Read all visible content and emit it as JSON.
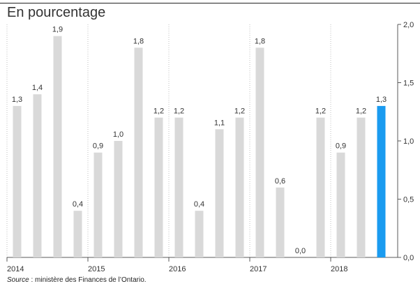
{
  "header": {
    "subtitle": "En pourcentage"
  },
  "footer": {
    "source_label": "Source",
    "source_text": " : ministère des Finances de l’Ontario."
  },
  "colors": {
    "bar": "#d9d9d9",
    "highlight": "#1a9bf0",
    "axis": "#595959",
    "grid": "#bfbfbf"
  },
  "chart_data": {
    "type": "bar",
    "title": "",
    "xlabel": "",
    "ylabel": "",
    "ylim": [
      0,
      2.0
    ],
    "y_axis_side": "right",
    "y_ticks": [
      "0,0",
      "0,5",
      "1,0",
      "1,5",
      "2,0"
    ],
    "y_tick_values": [
      0,
      0.5,
      1.0,
      1.5,
      2.0
    ],
    "x_tick_labels": [
      "2014",
      "2015",
      "2016",
      "2017",
      "2018"
    ],
    "grid": "vertical dotted lines between years",
    "categories": [
      "2014 T1",
      "2014 T2",
      "2014 T3",
      "2014 T4",
      "2015 T1",
      "2015 T2",
      "2015 T3",
      "2015 T4",
      "2016 T1",
      "2016 T2",
      "2016 T3",
      "2016 T4",
      "2017 T1",
      "2017 T2",
      "2017 T3",
      "2017 T4",
      "2018 T1",
      "2018 T2",
      "2018 T3"
    ],
    "values": [
      1.3,
      1.4,
      1.9,
      0.4,
      0.9,
      1.0,
      1.8,
      1.2,
      1.2,
      0.4,
      1.1,
      1.2,
      1.8,
      0.6,
      0.0,
      1.2,
      0.9,
      1.2,
      1.3
    ],
    "value_labels": [
      "1,3",
      "1,4",
      "1,9",
      "0,4",
      "0,9",
      "1,0",
      "1,8",
      "1,2",
      "1,2",
      "0,4",
      "1,1",
      "1,2",
      "1,8",
      "0,6",
      "0,0",
      "1,2",
      "0,9",
      "1,2",
      "1,3"
    ],
    "highlight_index": 18
  }
}
